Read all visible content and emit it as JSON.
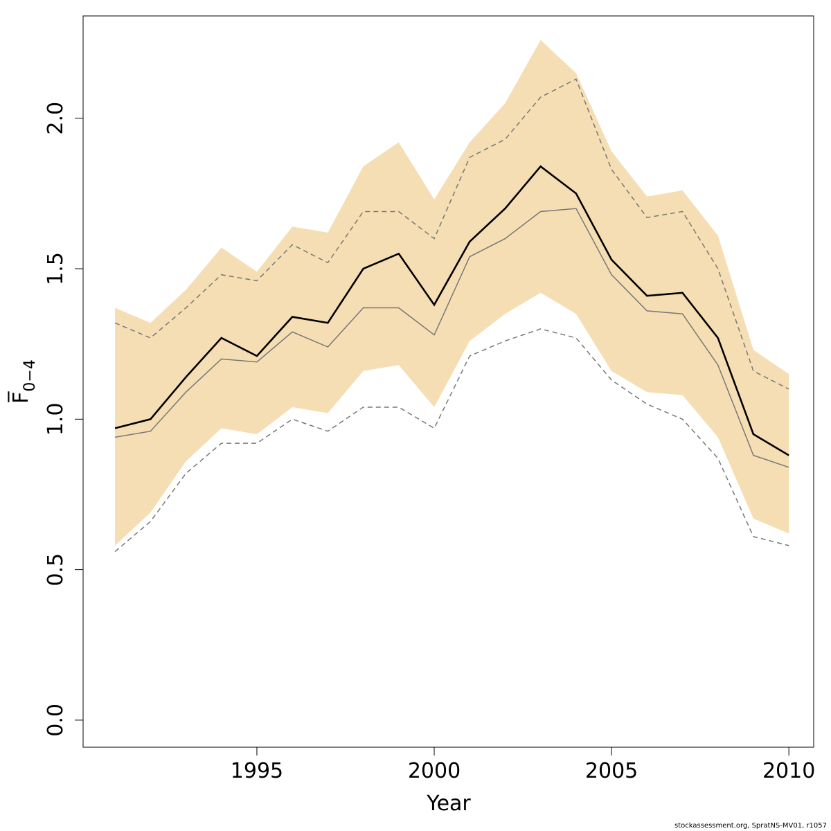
{
  "chart_data": {
    "type": "line",
    "xlabel": "Year",
    "ylabel": "F̅",
    "ylabel_subscript": "0−4",
    "xlim": [
      1990.1,
      2010.7
    ],
    "ylim": [
      -0.09,
      2.34
    ],
    "xticks": [
      1995,
      2000,
      2005,
      2010
    ],
    "yticks": [
      0.0,
      0.5,
      1.0,
      1.5,
      2.0
    ],
    "ytick_labels": [
      "0.0",
      "0.5",
      "1.0",
      "1.5",
      "2.0"
    ],
    "grid": false,
    "x": [
      1991,
      1992,
      1993,
      1994,
      1995,
      1996,
      1997,
      1998,
      1999,
      2000,
      2001,
      2002,
      2003,
      2004,
      2005,
      2006,
      2007,
      2008,
      2009,
      2010
    ],
    "band": {
      "color": "#f5deb3",
      "upper": [
        1.37,
        1.32,
        1.43,
        1.57,
        1.49,
        1.64,
        1.62,
        1.84,
        1.92,
        1.73,
        1.92,
        2.05,
        2.26,
        2.15,
        1.89,
        1.74,
        1.76,
        1.61,
        1.23,
        1.15
      ],
      "lower": [
        0.58,
        0.69,
        0.86,
        0.97,
        0.95,
        1.04,
        1.02,
        1.16,
        1.18,
        1.04,
        1.26,
        1.35,
        1.42,
        1.35,
        1.16,
        1.09,
        1.08,
        0.94,
        0.67,
        0.62
      ]
    },
    "series": [
      {
        "style": "solid-bold",
        "color": "#000000",
        "values": [
          0.97,
          1.0,
          1.14,
          1.27,
          1.21,
          1.34,
          1.32,
          1.5,
          1.55,
          1.38,
          1.59,
          1.7,
          1.84,
          1.75,
          1.53,
          1.41,
          1.42,
          1.27,
          0.95,
          0.88
        ]
      },
      {
        "style": "solid-thin",
        "color": "#777777",
        "values": [
          0.94,
          0.96,
          1.09,
          1.2,
          1.19,
          1.29,
          1.24,
          1.37,
          1.37,
          1.28,
          1.54,
          1.6,
          1.69,
          1.7,
          1.48,
          1.36,
          1.35,
          1.18,
          0.88,
          0.84
        ]
      },
      {
        "style": "dashed",
        "color": "#777777",
        "values": [
          1.32,
          1.27,
          1.37,
          1.48,
          1.46,
          1.58,
          1.52,
          1.69,
          1.69,
          1.6,
          1.87,
          1.93,
          2.07,
          2.13,
          1.83,
          1.67,
          1.69,
          1.5,
          1.16,
          1.1
        ]
      },
      {
        "style": "dashed",
        "color": "#777777",
        "values": [
          0.56,
          0.66,
          0.82,
          0.92,
          0.92,
          1.0,
          0.96,
          1.04,
          1.04,
          0.97,
          1.21,
          1.26,
          1.3,
          1.27,
          1.13,
          1.05,
          1.0,
          0.87,
          0.61,
          0.58
        ]
      }
    ]
  },
  "footer": "stockassessment.org, SpratNS-MV01, r1057"
}
